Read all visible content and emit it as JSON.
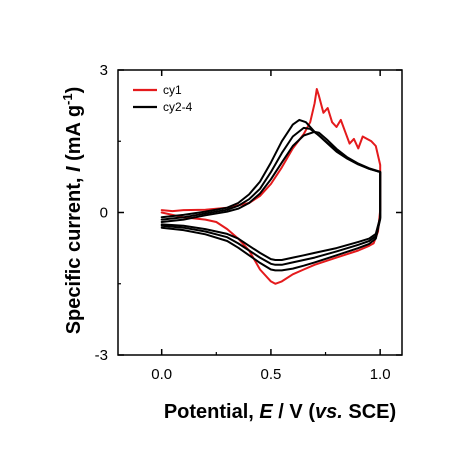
{
  "chart_data": {
    "type": "line",
    "title": "",
    "xlabel": "Potential, E / V (vs. SCE)",
    "ylabel": "Specific current, I (mA g-1)",
    "xlim": [
      -0.2,
      1.1
    ],
    "ylim": [
      -3,
      3
    ],
    "xticks": [
      0.0,
      0.5,
      1.0
    ],
    "xtick_labels": [
      "0.0",
      "0.5",
      "1.0"
    ],
    "yticks": [
      -3,
      0,
      3
    ],
    "ytick_labels": [
      "-3",
      "0",
      "3"
    ],
    "grid": false,
    "legend_position": "top-left",
    "legend": [
      {
        "label": "cy1",
        "color": "#e41a1c"
      },
      {
        "label": "cy2-4",
        "color": "#000000"
      }
    ],
    "series": [
      {
        "name": "cy1",
        "color": "#e41a1c",
        "x": [
          0.0,
          0.05,
          0.1,
          0.2,
          0.3,
          0.4,
          0.45,
          0.5,
          0.55,
          0.6,
          0.65,
          0.68,
          0.7,
          0.71,
          0.72,
          0.74,
          0.76,
          0.78,
          0.8,
          0.82,
          0.84,
          0.86,
          0.88,
          0.9,
          0.92,
          0.94,
          0.96,
          0.98,
          1.0,
          1.0,
          0.99,
          0.97,
          0.95,
          0.9,
          0.8,
          0.7,
          0.65,
          0.6,
          0.55,
          0.52,
          0.5,
          0.45,
          0.4,
          0.35,
          0.3,
          0.25,
          0.2,
          0.1,
          0.0
        ],
        "y": [
          0.05,
          0.03,
          0.05,
          0.06,
          0.1,
          0.2,
          0.35,
          0.6,
          0.95,
          1.35,
          1.65,
          1.9,
          2.3,
          2.6,
          2.45,
          2.1,
          2.2,
          1.9,
          1.8,
          1.95,
          1.7,
          1.45,
          1.55,
          1.35,
          1.6,
          1.55,
          1.5,
          1.4,
          1.0,
          0.05,
          -0.4,
          -0.65,
          -0.7,
          -0.8,
          -0.95,
          -1.1,
          -1.2,
          -1.3,
          -1.45,
          -1.5,
          -1.45,
          -1.2,
          -0.8,
          -0.55,
          -0.35,
          -0.2,
          -0.15,
          -0.1,
          0.0
        ]
      },
      {
        "name": "cy2-4",
        "color": "#000000",
        "x": [
          0.0,
          0.1,
          0.2,
          0.3,
          0.35,
          0.4,
          0.45,
          0.5,
          0.55,
          0.6,
          0.63,
          0.66,
          0.7,
          0.75,
          0.8,
          0.85,
          0.9,
          0.95,
          1.0,
          1.0,
          0.98,
          0.95,
          0.9,
          0.8,
          0.7,
          0.65,
          0.6,
          0.55,
          0.52,
          0.5,
          0.45,
          0.4,
          0.35,
          0.3,
          0.2,
          0.1,
          0.0
        ],
        "y": [
          -0.1,
          -0.05,
          0.02,
          0.1,
          0.2,
          0.38,
          0.65,
          1.05,
          1.5,
          1.85,
          1.95,
          1.9,
          1.7,
          1.5,
          1.3,
          1.15,
          1.02,
          0.92,
          0.85,
          -0.1,
          -0.45,
          -0.55,
          -0.62,
          -0.75,
          -0.85,
          -0.9,
          -0.95,
          -1.0,
          -1.0,
          -0.98,
          -0.85,
          -0.7,
          -0.55,
          -0.45,
          -0.35,
          -0.28,
          -0.25
        ]
      },
      {
        "name": "",
        "color": "#000000",
        "x": [
          0.0,
          0.1,
          0.2,
          0.3,
          0.35,
          0.4,
          0.45,
          0.5,
          0.55,
          0.6,
          0.65,
          0.68,
          0.72,
          0.76,
          0.8,
          0.85,
          0.9,
          0.95,
          1.0,
          1.0,
          0.98,
          0.95,
          0.9,
          0.8,
          0.7,
          0.65,
          0.6,
          0.55,
          0.52,
          0.5,
          0.45,
          0.4,
          0.35,
          0.3,
          0.2,
          0.1,
          0.0
        ],
        "y": [
          -0.15,
          -0.1,
          -0.02,
          0.06,
          0.14,
          0.28,
          0.5,
          0.85,
          1.25,
          1.6,
          1.78,
          1.76,
          1.62,
          1.45,
          1.28,
          1.13,
          1.01,
          0.92,
          0.85,
          -0.12,
          -0.5,
          -0.6,
          -0.68,
          -0.82,
          -0.95,
          -1.0,
          -1.05,
          -1.1,
          -1.1,
          -1.08,
          -0.95,
          -0.8,
          -0.65,
          -0.52,
          -0.4,
          -0.32,
          -0.28
        ]
      },
      {
        "name": "",
        "color": "#000000",
        "x": [
          0.0,
          0.1,
          0.2,
          0.3,
          0.35,
          0.4,
          0.45,
          0.5,
          0.55,
          0.6,
          0.65,
          0.7,
          0.72,
          0.76,
          0.8,
          0.85,
          0.9,
          0.95,
          1.0,
          1.0,
          0.98,
          0.95,
          0.9,
          0.8,
          0.7,
          0.65,
          0.6,
          0.55,
          0.52,
          0.5,
          0.45,
          0.4,
          0.35,
          0.3,
          0.2,
          0.1,
          0.0
        ],
        "y": [
          -0.2,
          -0.15,
          -0.06,
          0.02,
          0.08,
          0.2,
          0.4,
          0.7,
          1.05,
          1.4,
          1.62,
          1.7,
          1.68,
          1.52,
          1.34,
          1.16,
          1.03,
          0.93,
          0.86,
          -0.14,
          -0.55,
          -0.66,
          -0.75,
          -0.9,
          -1.05,
          -1.12,
          -1.18,
          -1.22,
          -1.22,
          -1.2,
          -1.06,
          -0.9,
          -0.74,
          -0.6,
          -0.46,
          -0.37,
          -0.32
        ]
      }
    ]
  }
}
